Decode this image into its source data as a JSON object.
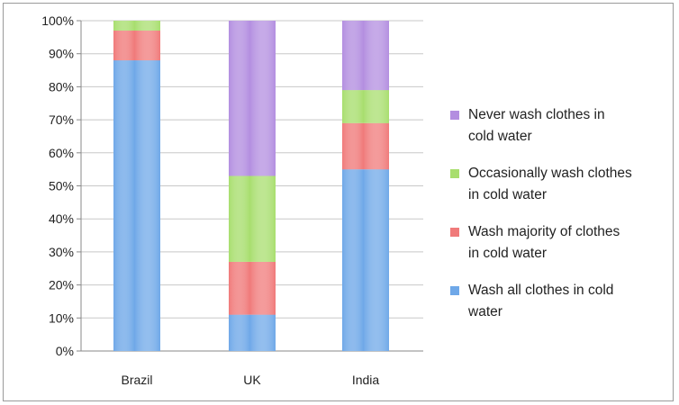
{
  "chart_data": {
    "type": "bar",
    "stacked": true,
    "categories": [
      "Brazil",
      "UK",
      "India"
    ],
    "series": [
      {
        "name": "Wash all clothes in cold water",
        "values": [
          88,
          11,
          55
        ],
        "color": "#6fa8e8"
      },
      {
        "name": "Wash majority of clothes in cold water",
        "values": [
          9,
          16,
          14
        ],
        "color": "#f07a7a"
      },
      {
        "name": "Occasionally wash clothes in cold water",
        "values": [
          3,
          26,
          10
        ],
        "color": "#a8de6e"
      },
      {
        "name": "Never wash clothes in cold water",
        "values": [
          0,
          47,
          21
        ],
        "color": "#b38ee0"
      }
    ],
    "ylim": [
      0,
      100
    ],
    "yticks": [
      0,
      10,
      20,
      30,
      40,
      50,
      60,
      70,
      80,
      90,
      100
    ],
    "ytick_suffix": "%",
    "grid": true,
    "legend_position": "right",
    "legend": [
      {
        "series": 3,
        "lines": [
          "Never wash clothes in",
          "cold water"
        ]
      },
      {
        "series": 2,
        "lines": [
          "Occasionally wash clothes",
          "in cold water"
        ]
      },
      {
        "series": 1,
        "lines": [
          "Wash majority of clothes",
          "in cold water"
        ]
      },
      {
        "series": 0,
        "lines": [
          "Wash all clothes in cold",
          "water"
        ]
      }
    ]
  }
}
